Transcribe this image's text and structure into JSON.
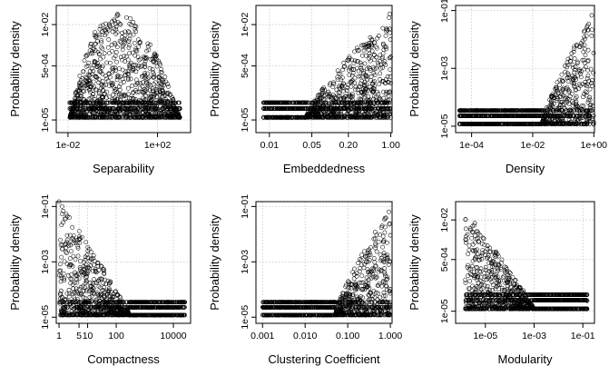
{
  "chart_data": [
    {
      "type": "scatter",
      "title": "",
      "xlabel": "Separability",
      "ylabel": "Probability density",
      "xscale": "log",
      "yscale": "log",
      "xlim": [
        0.003,
        3000
      ],
      "ylim": [
        4e-06,
        0.04
      ],
      "xticks": [
        {
          "value": 0.01,
          "label": "1e-02"
        },
        {
          "value": 100,
          "label": "1e+02"
        }
      ],
      "yticks": [
        {
          "value": 1e-05,
          "label": "1e-05"
        },
        {
          "value": 0.0005,
          "label": "5e-04"
        },
        {
          "value": 0.01,
          "label": "1e-02"
        }
      ],
      "grid": true,
      "shape": {
        "kind": "hump",
        "xmin": 0.012,
        "xmax": 1000,
        "xpeak": 1.2,
        "peak": 0.025,
        "floor": 1.2e-05
      },
      "outliers": [
        {
          "x": 0.012,
          "y": 1.2e-05
        },
        {
          "x": 1000,
          "y": 1.2e-05
        }
      ]
    },
    {
      "type": "scatter",
      "title": "",
      "xlabel": "Embeddedness",
      "ylabel": "Probability density",
      "xscale": "log",
      "yscale": "log",
      "xlim": [
        0.006,
        1.05
      ],
      "ylim": [
        4e-06,
        0.04
      ],
      "xticks": [
        {
          "value": 0.01,
          "label": "0.01"
        },
        {
          "value": 0.05,
          "label": "0.05"
        },
        {
          "value": 0.2,
          "label": "0.20"
        },
        {
          "value": 1,
          "label": "1.00"
        }
      ],
      "yticks": [
        {
          "value": 1e-05,
          "label": "1e-05"
        },
        {
          "value": 0.0005,
          "label": "5e-04"
        },
        {
          "value": 0.01,
          "label": "1e-02"
        }
      ],
      "grid": true,
      "shape": {
        "kind": "rising",
        "xmin": 0.008,
        "xmax": 1.0,
        "xstart": 0.04,
        "peak": 0.025,
        "floor": 1.2e-05
      },
      "outliers": [
        {
          "x": 0.008,
          "y": 1.2e-05
        },
        {
          "x": 0.02,
          "y": 1.2e-05
        }
      ]
    },
    {
      "type": "scatter",
      "title": "",
      "xlabel": "Density",
      "ylabel": "Probability density",
      "xscale": "log",
      "yscale": "log",
      "xlim": [
        3e-05,
        1.05
      ],
      "ylim": [
        6e-06,
        0.15
      ],
      "xticks": [
        {
          "value": 0.0001,
          "label": "1e-04"
        },
        {
          "value": 0.01,
          "label": "1e-02"
        },
        {
          "value": 1,
          "label": "1e+00"
        }
      ],
      "yticks": [
        {
          "value": 1e-05,
          "label": "1e-05"
        },
        {
          "value": 0.001,
          "label": "1e-03"
        },
        {
          "value": 0.1,
          "label": "1e-01"
        }
      ],
      "grid": true,
      "shape": {
        "kind": "rising",
        "xmin": 4e-05,
        "xmax": 1.0,
        "xstart": 0.02,
        "peak": 0.1,
        "floor": 1.2e-05
      },
      "outliers": [
        {
          "x": 4e-05,
          "y": 1.2e-05
        }
      ]
    },
    {
      "type": "scatter",
      "title": "",
      "xlabel": "Compactness",
      "ylabel": "Probability density",
      "xscale": "log",
      "yscale": "log",
      "xlim": [
        0.8,
        40000
      ],
      "ylim": [
        6e-06,
        0.15
      ],
      "xticks": [
        {
          "value": 1,
          "label": "1"
        },
        {
          "value": 5,
          "label": "5"
        },
        {
          "value": 10,
          "label": "10"
        },
        {
          "value": 100,
          "label": "100"
        },
        {
          "value": 10000,
          "label": "10000"
        }
      ],
      "yticks": [
        {
          "value": 1e-05,
          "label": "1e-05"
        },
        {
          "value": 0.001,
          "label": "1e-03"
        },
        {
          "value": 0.1,
          "label": "1e-01"
        }
      ],
      "grid": true,
      "shape": {
        "kind": "falling",
        "xmin": 1,
        "xmax": 25000,
        "xend": 300,
        "peak": 0.15,
        "floor": 1.2e-05
      },
      "outliers": [
        {
          "x": 1,
          "y": 0.15
        },
        {
          "x": 25000,
          "y": 1.2e-05
        }
      ]
    },
    {
      "type": "scatter",
      "title": "",
      "xlabel": "Clustering Coefficient",
      "ylabel": "Probability density",
      "xscale": "log",
      "yscale": "log",
      "xlim": [
        0.0007,
        1.1
      ],
      "ylim": [
        6e-06,
        0.15
      ],
      "xticks": [
        {
          "value": 0.001,
          "label": "0.001"
        },
        {
          "value": 0.01,
          "label": "0.010"
        },
        {
          "value": 0.1,
          "label": "0.100"
        },
        {
          "value": 1,
          "label": "1.000"
        }
      ],
      "yticks": [
        {
          "value": 1e-05,
          "label": "1e-05"
        },
        {
          "value": 0.001,
          "label": "1e-03"
        },
        {
          "value": 0.1,
          "label": "1e-01"
        }
      ],
      "grid": true,
      "shape": {
        "kind": "rising",
        "xmin": 0.001,
        "xmax": 1.0,
        "xstart": 0.05,
        "peak": 0.1,
        "floor": 1.2e-05
      },
      "outliers": [
        {
          "x": 0.001,
          "y": 1.2e-05
        },
        {
          "x": 0.006,
          "y": 1.2e-05
        },
        {
          "x": 0.01,
          "y": 1.2e-05
        }
      ]
    },
    {
      "type": "scatter",
      "title": "",
      "xlabel": "Modularity",
      "ylabel": "Probability density",
      "xscale": "log",
      "yscale": "log",
      "xlim": [
        6e-07,
        0.3
      ],
      "ylim": [
        4e-06,
        0.04
      ],
      "xticks": [
        {
          "value": 1e-05,
          "label": "1e-05"
        },
        {
          "value": 0.001,
          "label": "1e-03"
        },
        {
          "value": 0.1,
          "label": "1e-01"
        }
      ],
      "yticks": [
        {
          "value": 1e-05,
          "label": "1e-05"
        },
        {
          "value": 0.0005,
          "label": "5e-04"
        },
        {
          "value": 0.01,
          "label": "1e-02"
        }
      ],
      "grid": true,
      "shape": {
        "kind": "falling",
        "xmin": 1.5e-06,
        "xmax": 0.15,
        "xend": 0.001,
        "peak": 0.02,
        "floor": 1.2e-05
      },
      "outliers": [
        {
          "x": 0.15,
          "y": 1.2e-05
        },
        {
          "x": 0.15,
          "y": 2.2e-05
        }
      ]
    }
  ]
}
